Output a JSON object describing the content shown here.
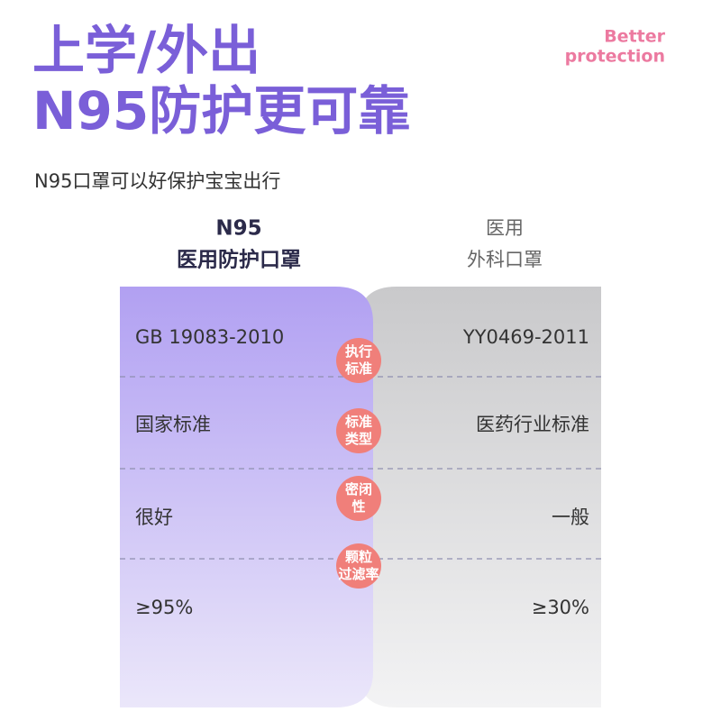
{
  "header": {
    "title_lines": [
      "上学/外出",
      "N95防护更可靠"
    ],
    "tagline_lines": [
      "Better",
      "protection"
    ],
    "subtitle": "N95口罩可以好保护宝宝出行"
  },
  "columns": [
    {
      "lines": [
        "N95",
        "医用防护口罩"
      ]
    },
    {
      "lines": [
        "医用",
        "外科口罩"
      ]
    }
  ],
  "rows": [
    {
      "label_lines": [
        "执行",
        "标准"
      ],
      "left": "GB 19083-2010",
      "right": "YY0469-2011"
    },
    {
      "label_lines": [
        "标准",
        "类型"
      ],
      "left": "国家标准",
      "right": "医药行业标准"
    },
    {
      "label_lines": [
        "密闭",
        "性"
      ],
      "left": "很好",
      "right": "一般"
    },
    {
      "label_lines": [
        "颗粒",
        "过滤率"
      ],
      "left": "≥95%",
      "right": "≥30%"
    }
  ]
}
